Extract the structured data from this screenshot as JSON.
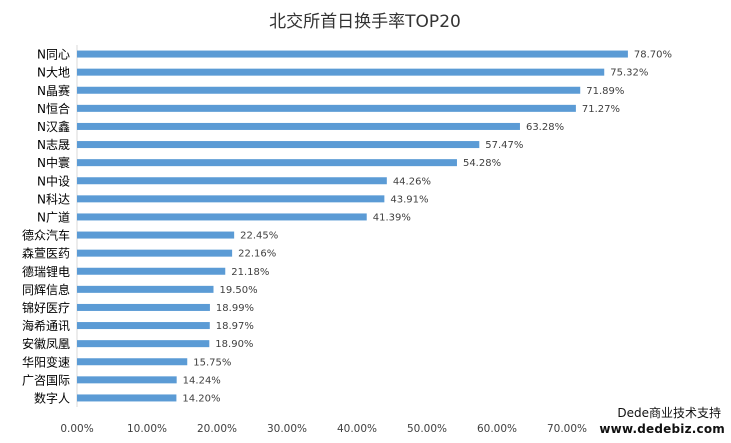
{
  "chart_data": {
    "type": "bar",
    "orientation": "horizontal",
    "title": "北交所首日换手率TOP20",
    "categories": [
      "N同心",
      "N大地",
      "N晶赛",
      "N恒合",
      "N汉鑫",
      "N志晟",
      "N中寰",
      "N中设",
      "N科达",
      "N广道",
      "德众汽车",
      "森萱医药",
      "德瑞锂电",
      "同辉信息",
      "锦好医疗",
      "海希通讯",
      "安徽凤凰",
      "华阳变速",
      "广咨国际",
      "数字人"
    ],
    "values": [
      78.7,
      75.32,
      71.89,
      71.27,
      63.28,
      57.47,
      54.28,
      44.26,
      43.91,
      41.39,
      22.45,
      22.16,
      21.18,
      19.5,
      18.99,
      18.97,
      18.9,
      15.75,
      14.24,
      14.2
    ],
    "data_labels": [
      "78.70%",
      "75.32%",
      "71.89%",
      "71.27%",
      "63.28%",
      "57.47%",
      "54.28%",
      "44.26%",
      "43.91%",
      "41.39%",
      "22.45%",
      "22.16%",
      "21.18%",
      "19.50%",
      "18.99%",
      "18.97%",
      "18.90%",
      "15.75%",
      "14.24%",
      "14.20%"
    ],
    "x_ticks": [
      0,
      10,
      20,
      30,
      40,
      50,
      60,
      70
    ],
    "x_tick_labels": [
      "0.00%",
      "10.00%",
      "20.00%",
      "30.00%",
      "40.00%",
      "50.00%",
      "60.00%",
      "70.00%"
    ],
    "xlim": [
      0,
      90
    ],
    "xlabel": "",
    "ylabel": "",
    "grid": false,
    "bar_color": "#5B9BD5"
  },
  "watermark": {
    "line1": "Dede商业技术支持",
    "line2": "www.dedebiz.com"
  }
}
